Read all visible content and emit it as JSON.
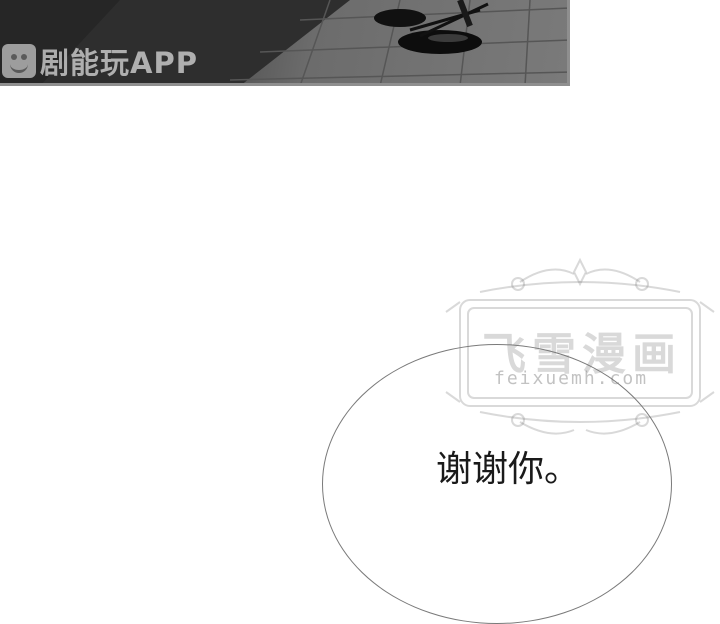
{
  "photo_watermark": {
    "app_name": "剧能玩APP",
    "logo_icon": "smiley-film-icon"
  },
  "site_watermark": {
    "title": "飞雪漫画",
    "url": "feixuemh.com"
  },
  "dialogue": {
    "text": "谢谢你。"
  }
}
